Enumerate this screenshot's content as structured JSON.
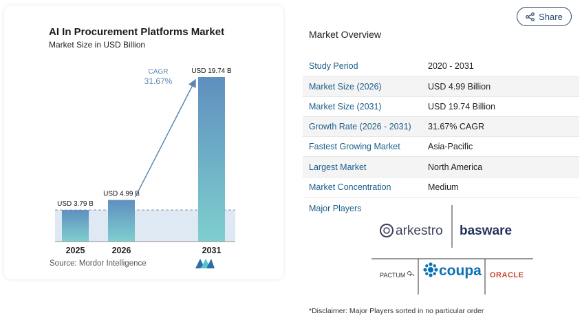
{
  "chart_data": {
    "type": "bar",
    "title": "AI In Procurement Platforms Market",
    "subtitle": "Market Size in USD Billion",
    "categories": [
      "2025",
      "2026",
      "2031"
    ],
    "values": [
      3.79,
      4.99,
      19.74
    ],
    "data_labels": [
      "USD 3.79 B",
      "USD 4.99 B",
      "USD 19.74 B"
    ],
    "cagr_label": "CAGR",
    "cagr_value": "31.67%",
    "ylim": [
      0,
      20
    ],
    "colors": {
      "bar_top": "#5f8fbf",
      "bar_bottom": "#7fcfcf",
      "arrow": "#5c87b2",
      "band": "#dfe9f4"
    }
  },
  "source": "Source: Mordor Intelligence",
  "share": {
    "label": "Share",
    "icon": "share-icon"
  },
  "overview": {
    "title": "Market Overview",
    "rows": [
      {
        "key": "Study Period",
        "value": "2020 - 2031"
      },
      {
        "key": "Market Size (2026)",
        "value": "USD 4.99 Billion"
      },
      {
        "key": "Market Size (2031)",
        "value": "USD 19.74 Billion"
      },
      {
        "key": "Growth Rate (2026 - 2031)",
        "value": "31.67% CAGR"
      },
      {
        "key": "Fastest Growing Market",
        "value": "Asia-Pacific"
      },
      {
        "key": "Largest Market",
        "value": "North America"
      },
      {
        "key": "Market Concentration",
        "value": "Medium"
      }
    ]
  },
  "players": {
    "title": "Major Players",
    "logos": [
      "arkestro",
      "basware",
      "PACTUM",
      "coupa",
      "ORACLE"
    ]
  },
  "disclaimer": "*Disclaimer: Major Players sorted in no particular order"
}
